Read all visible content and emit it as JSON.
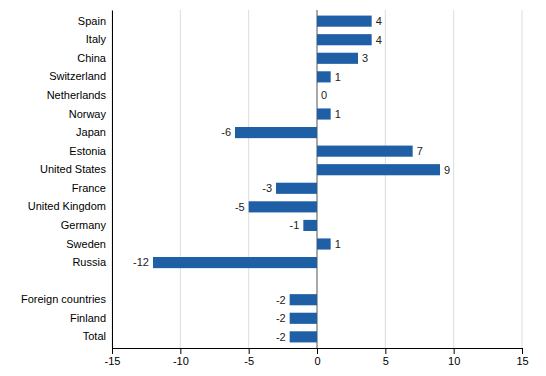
{
  "chart_data": {
    "type": "bar",
    "orientation": "horizontal",
    "categories": [
      "Total",
      "Finland",
      "Foreign countries",
      null,
      "Russia",
      "Sweden",
      "Germany",
      "United Kingdom",
      "France",
      "United States",
      "Estonia",
      "Japan",
      "Norway",
      "Netherlands",
      "Switzerland",
      "China",
      "Italy",
      "Spain"
    ],
    "values": [
      -2,
      -2,
      -2,
      null,
      -12,
      1,
      -1,
      -5,
      -3,
      9,
      7,
      -6,
      1,
      0,
      1,
      3,
      4,
      4
    ],
    "color": "#1F5FA6",
    "xlim": [
      -15,
      15
    ],
    "xticks": [
      -15,
      -10,
      -5,
      0,
      5,
      10,
      15
    ],
    "grid": true,
    "data_labels": true
  }
}
